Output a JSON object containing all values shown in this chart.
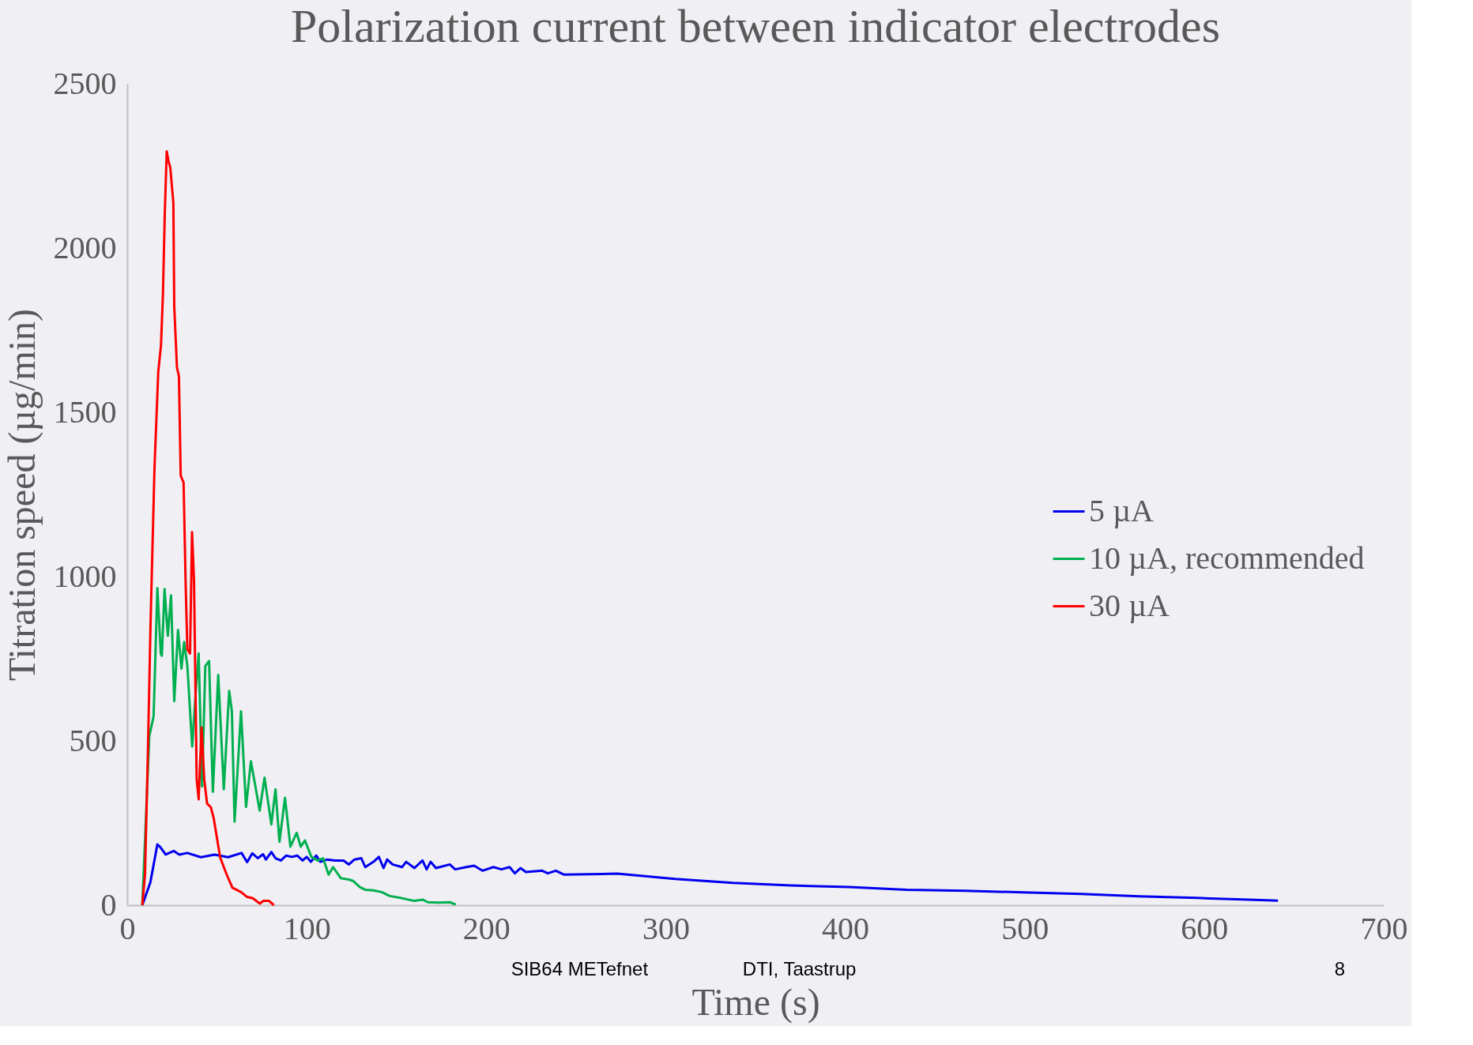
{
  "chart_data": {
    "type": "line",
    "title": "Polarization current between indicator electrodes",
    "xlabel": "Time (s)",
    "ylabel": "Titration speed (µg/min)",
    "xlim": [
      0,
      700
    ],
    "xticks": [
      0,
      100,
      200,
      300,
      400,
      500,
      600,
      700
    ],
    "ylim": [
      0,
      2500
    ],
    "yticks": [
      0,
      500,
      1000,
      1500,
      2000,
      2500
    ],
    "grid": false,
    "legend": "right",
    "marker": "none",
    "line_style": "solid",
    "annotations": [
      "SIB64 METefnet",
      "DTI, Taastrup",
      "8"
    ],
    "series": [
      {
        "name": "5 µA",
        "color": "#0000ee",
        "x": [
          8.4,
          12.9,
          16.8,
          18.4,
          21.4,
          25.9,
          29,
          33.5,
          41,
          48.6,
          56.2,
          63.7,
          66.8,
          69.7,
          72.7,
          75.7,
          77.3,
          80.3,
          82.6,
          85.6,
          88.6,
          91.7,
          94.7,
          97.7,
          100,
          102.3,
          105.3,
          107.6,
          111.4,
          116,
          120.5,
          123.5,
          126.6,
          130.4,
          132.6,
          137.2,
          140.2,
          142.8,
          144.8,
          147.8,
          153.1,
          155.4,
          160,
          164.5,
          166.8,
          169,
          172,
          179.7,
          182.7,
          188.8,
          193.3,
          197.9,
          204,
          208.5,
          213,
          216,
          219.1,
          222.1,
          231.2,
          234.3,
          238.8,
          243.4,
          272.9,
          305.2,
          337.5,
          369.8,
          402.1,
          434.4,
          466.7,
          499,
          531.3,
          563.6,
          595.9,
          628.2,
          641.1
        ],
        "values": [
          0,
          70,
          185,
          177,
          154,
          165,
          154,
          159,
          146,
          154,
          146,
          159,
          131,
          158,
          143,
          155,
          139,
          162,
          143,
          136,
          151,
          147,
          151,
          136,
          147,
          132,
          151,
          132,
          139,
          136,
          136,
          124,
          139,
          143,
          116,
          132,
          147,
          113,
          139,
          124,
          116,
          132,
          113,
          136,
          109,
          132,
          113,
          124,
          109,
          116,
          120,
          105,
          116,
          109,
          116,
          97,
          113,
          101,
          105,
          97,
          105,
          93,
          96,
          80,
          68,
          60,
          55,
          47,
          44,
          39,
          34,
          27,
          22,
          16,
          14
        ]
      },
      {
        "name": "10 µA, recommended",
        "color": "#00b050",
        "x": [
          8.4,
          12.3,
          14.7,
          16.8,
          18.7,
          19.3,
          20.8,
          22.6,
          24.4,
          26.2,
          28.3,
          30.2,
          31.7,
          33.5,
          36.2,
          38,
          39.8,
          41.7,
          43.5,
          45.6,
          47.7,
          50.7,
          53.8,
          56.8,
          58.3,
          59.8,
          63.4,
          66.2,
          68.9,
          73.8,
          76.5,
          80.3,
          82.6,
          84.8,
          87.9,
          90.9,
          94.4,
          96.7,
          99,
          102.6,
          106.1,
          109.1,
          112.2,
          114.7,
          119,
          123.5,
          125.8,
          129.6,
          132.6,
          137.2,
          141.7,
          146.3,
          152.4,
          160,
          164.5,
          167.5,
          173.6,
          179.7,
          183
        ],
        "values": [
          0,
          514,
          575,
          965,
          766,
          759,
          962,
          820,
          943,
          621,
          838,
          720,
          801,
          728,
          483,
          636,
          766,
          361,
          728,
          743,
          345,
          701,
          353,
          652,
          590,
          254,
          590,
          299,
          438,
          288,
          388,
          246,
          353,
          193,
          327,
          178,
          220,
          178,
          197,
          147,
          136,
          143,
          93,
          116,
          82,
          78,
          74,
          55,
          47,
          45,
          40,
          28,
          22,
          13,
          17,
          9,
          8,
          9,
          2
        ]
      },
      {
        "name": "30 µA",
        "color": "#ff0000",
        "x": [
          8.4,
          9.9,
          11.5,
          13,
          15.2,
          17.3,
          18.8,
          19.9,
          20.9,
          22,
          23,
          24,
          25.7,
          26.2,
          27.7,
          28.8,
          29.8,
          31.4,
          32.5,
          33.5,
          35,
          36.1,
          37.2,
          38.7,
          39.8,
          41.4,
          42.9,
          44.5,
          46.6,
          48.2,
          51.8,
          55.5,
          58.6,
          63.4,
          66.5,
          70,
          73.8,
          75.9,
          79,
          81.7
        ],
        "values": [
          0,
          92,
          462,
          858,
          1333,
          1624,
          1703,
          1861,
          2099,
          2294,
          2265,
          2244,
          2138,
          1822,
          1637,
          1610,
          1307,
          1286,
          990,
          779,
          766,
          1135,
          990,
          383,
          322,
          541,
          383,
          309,
          298,
          264,
          145,
          92,
          53,
          40,
          26,
          21,
          5,
          13,
          13,
          0
        ]
      }
    ]
  }
}
